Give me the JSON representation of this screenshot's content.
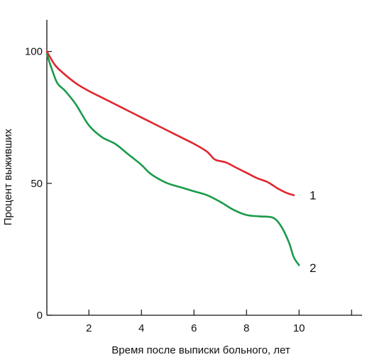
{
  "chart_data": {
    "type": "line",
    "title": "",
    "xlabel": "Время после выписки больного, лет",
    "ylabel": "Процент выживших",
    "xlim": [
      0.4,
      12.4
    ],
    "ylim": [
      0,
      112
    ],
    "x_ticks": [
      2,
      4,
      6,
      8,
      10,
      12
    ],
    "x_tick_labels": [
      "2",
      "4",
      "6",
      "8",
      "10",
      ""
    ],
    "y_ticks": [
      0,
      50,
      100
    ],
    "y_tick_labels": [
      "0",
      "50",
      "100"
    ],
    "grid": false,
    "legend": "none",
    "series": [
      {
        "name": "1",
        "color": "#e0262e",
        "x": [
          0.4,
          0.7,
          1.0,
          1.5,
          2.0,
          2.5,
          3.0,
          3.5,
          4.0,
          4.5,
          5.0,
          5.5,
          6.0,
          6.5,
          6.8,
          7.2,
          7.6,
          8.0,
          8.4,
          8.8,
          9.2,
          9.5,
          9.8
        ],
        "values": [
          100,
          95,
          92,
          88,
          85,
          82.5,
          80,
          77.5,
          75,
          72.5,
          70,
          67.5,
          65,
          62,
          59,
          58,
          56,
          54,
          52,
          50.5,
          48,
          46.5,
          45.5
        ]
      },
      {
        "name": "2",
        "color": "#1a9a4a",
        "x": [
          0.4,
          0.6,
          0.8,
          1.1,
          1.5,
          2.0,
          2.5,
          3.0,
          3.5,
          4.0,
          4.3,
          4.6,
          5.0,
          5.5,
          6.0,
          6.5,
          7.0,
          7.5,
          8.0,
          8.5,
          9.0,
          9.3,
          9.6,
          9.8,
          10.0
        ],
        "values": [
          99,
          93,
          88,
          85,
          80,
          72,
          67.5,
          65,
          61,
          57,
          54,
          52,
          50,
          48.5,
          47,
          45.5,
          43,
          40,
          38,
          37.5,
          37,
          34,
          28,
          22,
          19
        ]
      }
    ],
    "annotations": [
      {
        "text": "1",
        "x": 10.4,
        "y": 45.5
      },
      {
        "text": "2",
        "x": 10.4,
        "y": 18
      }
    ]
  }
}
